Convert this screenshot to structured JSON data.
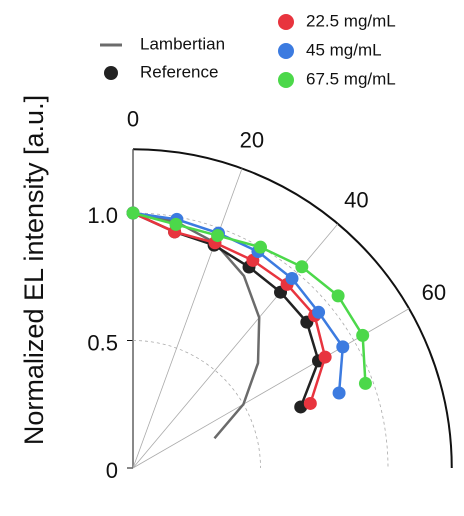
{
  "chart_data": {
    "type": "polar",
    "y_label": "Normalized EL intensity [a.u.]",
    "x": [
      0,
      10,
      20,
      30,
      40,
      50,
      60,
      70
    ],
    "rlim": [
      0,
      1.25
    ],
    "rticks": [
      0,
      0.5,
      {
        "value": 1.0,
        "label": "1.0"
      }
    ],
    "thetalim": [
      0,
      90
    ],
    "thetaticks": [
      0,
      20,
      40,
      60
    ],
    "grid": true,
    "series": [
      {
        "name": "Lambertian",
        "color": "#6b6b6b",
        "marker": false,
        "values": [
          1.0,
          0.98,
          0.94,
          0.87,
          0.77,
          0.64,
          0.5,
          0.34
        ]
      },
      {
        "name": "Reference",
        "color": "#222222",
        "marker": true,
        "values": [
          1.0,
          0.94,
          0.93,
          0.91,
          0.9,
          0.89,
          0.84,
          0.7
        ]
      },
      {
        "name": "22.5 mg/mL",
        "color": "#e8343e",
        "marker": true,
        "values": [
          1.0,
          0.94,
          0.94,
          0.94,
          0.94,
          0.93,
          0.87,
          0.74
        ]
      },
      {
        "name": "45 mg/mL",
        "color": "#3c7be0",
        "marker": true,
        "values": [
          1.0,
          0.99,
          0.98,
          0.98,
          0.97,
          0.95,
          0.95,
          0.86
        ]
      },
      {
        "name": "67.5 mg/mL",
        "color": "#4cd84a",
        "marker": true,
        "values": [
          1.0,
          0.97,
          0.97,
          1.0,
          1.03,
          1.05,
          1.04,
          0.97
        ]
      }
    ]
  }
}
